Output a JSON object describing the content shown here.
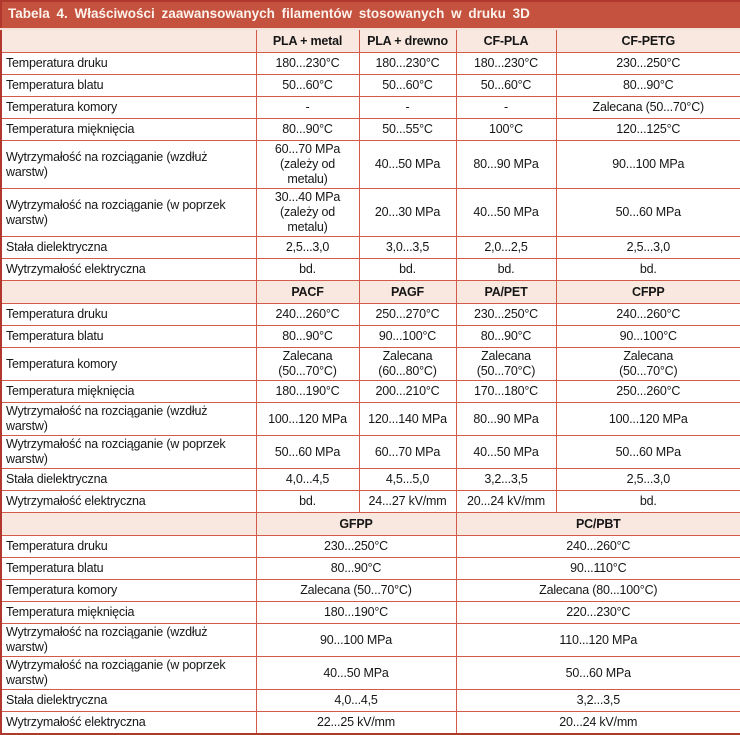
{
  "title": "Tabela 4. Właściwości zaawansowanych filamentów stosowanych w druku 3D",
  "row_labels": [
    "Temperatura druku",
    "Temperatura blatu",
    "Temperatura komory",
    "Temperatura mięknięcia",
    "Wytrzymałość na rozciąganie (wzdłuż warstw)",
    "Wytrzymałość na rozciąganie (w poprzek warstw)",
    "Stała dielektryczna",
    "Wytrzymałość elektryczna"
  ],
  "sections": [
    {
      "columns": [
        "PLA + metal",
        "PLA + drewno",
        "CF-PLA",
        "CF-PETG"
      ],
      "colspan": 1,
      "rows": [
        [
          "180...230°C",
          "180...230°C",
          "180...230°C",
          "230...250°C"
        ],
        [
          "50...60°C",
          "50...60°C",
          "50...60°C",
          "80...90°C"
        ],
        [
          "-",
          "-",
          "-",
          "Zalecana (50...70°C)"
        ],
        [
          "80...90°C",
          "50...55°C",
          "100°C",
          "120...125°C"
        ],
        [
          "60...70 MPa\n(zależy od metalu)",
          "40...50 MPa",
          "80...90 MPa",
          "90...100 MPa"
        ],
        [
          "30...40 MPa\n(zależy od metalu)",
          "20...30 MPa",
          "40...50 MPa",
          "50...60 MPa"
        ],
        [
          "2,5...3,0",
          "3,0...3,5",
          "2,0...2,5",
          "2,5...3,0"
        ],
        [
          "bd.",
          "bd.",
          "bd.",
          "bd."
        ]
      ]
    },
    {
      "columns": [
        "PACF",
        "PAGF",
        "PA/PET",
        "CFPP"
      ],
      "colspan": 1,
      "rows": [
        [
          "240...260°C",
          "250...270°C",
          "230...250°C",
          "240...260°C"
        ],
        [
          "80...90°C",
          "90...100°C",
          "80...90°C",
          "90...100°C"
        ],
        [
          "Zalecana\n(50...70°C)",
          "Zalecana\n(60...80°C)",
          "Zalecana\n(50...70°C)",
          "Zalecana\n(50...70°C)"
        ],
        [
          "180...190°C",
          "200...210°C",
          "170...180°C",
          "250...260°C"
        ],
        [
          "100...120 MPa",
          "120...140 MPa",
          "80...90 MPa",
          "100...120 MPa"
        ],
        [
          "50...60 MPa",
          "60...70 MPa",
          "40...50 MPa",
          "50...60 MPa"
        ],
        [
          "4,0...4,5",
          "4,5...5,0",
          "3,2...3,5",
          "2,5...3,0"
        ],
        [
          "bd.",
          "24...27 kV/mm",
          "20...24 kV/mm",
          "bd."
        ]
      ]
    },
    {
      "columns": [
        "GFPP",
        "PC/PBT"
      ],
      "colspan": 2,
      "rows": [
        [
          "230...250°C",
          "240...260°C"
        ],
        [
          "80...90°C",
          "90...110°C"
        ],
        [
          "Zalecana (50...70°C)",
          "Zalecana (80...100°C)"
        ],
        [
          "180...190°C",
          "220...230°C"
        ],
        [
          "90...100 MPa",
          "110...120 MPa"
        ],
        [
          "40...50 MPa",
          "50...60 MPa"
        ],
        [
          "4,0...4,5",
          "3,2...3,5"
        ],
        [
          "22...25 kV/mm",
          "20...24 kV/mm"
        ]
      ]
    }
  ],
  "colors": {
    "title_bg": "#c5523e",
    "title_text": "#fdf3ec",
    "header_bg": "#f9e8e0",
    "inner_border": "#d35a4b",
    "outer_border": "#b0382c",
    "text": "#161616"
  }
}
